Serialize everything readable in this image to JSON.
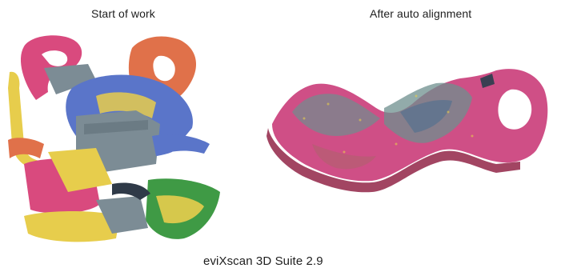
{
  "captions": {
    "left": "Start of work",
    "right": "After auto alignment",
    "footer": "eviXscan 3D Suite 2.9"
  },
  "colors": {
    "background": "#ffffff",
    "scan_pink": "#d94a7e",
    "scan_orange": "#e0714a",
    "scan_blue": "#5a75c9",
    "scan_yellow": "#e7cd4c",
    "scan_green": "#3f9a45",
    "scan_gray": "#7c8c95",
    "aligned_magenta": "#cf4f86",
    "aligned_teal": "#6d8f8e"
  },
  "illustrations": {
    "left": "scattered-scans-icon",
    "right": "aligned-bracket-icon"
  }
}
